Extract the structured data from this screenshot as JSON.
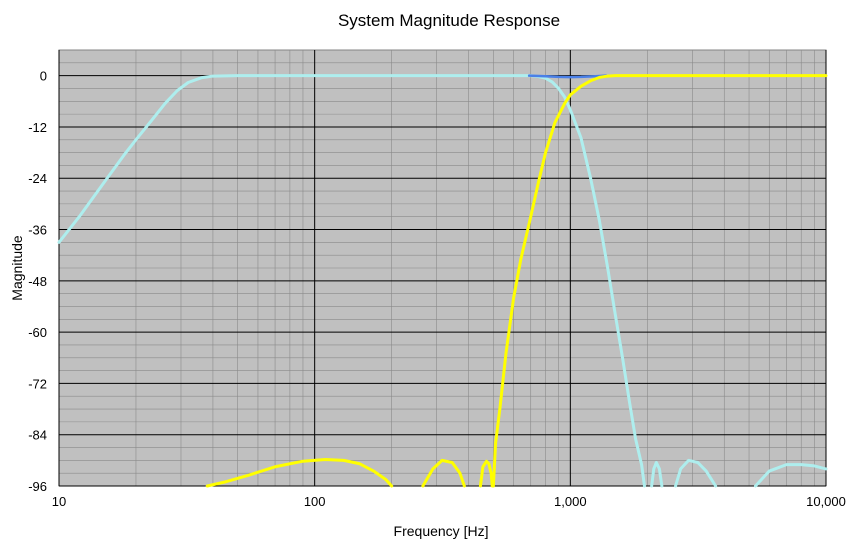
{
  "chart_data": {
    "type": "line",
    "title": "System Magnitude Response",
    "xlabel": "Frequency [Hz]",
    "ylabel": "Magnitude",
    "x_scale": "log",
    "xlim": [
      10,
      10000
    ],
    "ylim": [
      -96,
      6
    ],
    "x_ticks": [
      {
        "value": 10,
        "label": "10"
      },
      {
        "value": 100,
        "label": "100"
      },
      {
        "value": 1000,
        "label": "1,000"
      },
      {
        "value": 10000,
        "label": "10,000"
      }
    ],
    "y_ticks": [
      {
        "value": 0,
        "label": "0"
      },
      {
        "value": -12,
        "label": "-12"
      },
      {
        "value": -24,
        "label": "-24"
      },
      {
        "value": -36,
        "label": "-36"
      },
      {
        "value": -48,
        "label": "-48"
      },
      {
        "value": -60,
        "label": "-60"
      },
      {
        "value": -72,
        "label": "-72"
      },
      {
        "value": -84,
        "label": "-84"
      },
      {
        "value": -96,
        "label": "-96"
      }
    ],
    "grid": true,
    "plot_background": "#c0c0c0",
    "series": [
      {
        "color": "#aeeeee",
        "segments": [
          [
            [
              10,
              -39
            ],
            [
              12,
              -33
            ],
            [
              15,
              -25
            ],
            [
              18,
              -18.5
            ],
            [
              20,
              -15
            ],
            [
              23,
              -10.5
            ],
            [
              26,
              -6.5
            ],
            [
              29,
              -3.5
            ],
            [
              32,
              -1.6
            ],
            [
              36,
              -0.5
            ],
            [
              40,
              -0.1
            ],
            [
              50,
              0
            ],
            [
              100,
              0
            ],
            [
              200,
              0
            ],
            [
              400,
              0
            ],
            [
              600,
              0
            ],
            [
              700,
              0
            ],
            [
              750,
              -0.2
            ],
            [
              800,
              -0.6
            ],
            [
              850,
              -1.5
            ],
            [
              900,
              -3
            ],
            [
              950,
              -5
            ],
            [
              1000,
              -8
            ],
            [
              1100,
              -14.5
            ],
            [
              1200,
              -24
            ],
            [
              1300,
              -34
            ],
            [
              1400,
              -45
            ],
            [
              1500,
              -56
            ],
            [
              1600,
              -66
            ],
            [
              1700,
              -76
            ],
            [
              1800,
              -85
            ],
            [
              1900,
              -91
            ],
            [
              1950,
              -96
            ]
          ],
          [
            [
              2080,
              -96
            ],
            [
              2120,
              -92
            ],
            [
              2170,
              -90.5
            ],
            [
              2230,
              -92
            ],
            [
              2280,
              -96
            ]
          ],
          [
            [
              2580,
              -96
            ],
            [
              2700,
              -92
            ],
            [
              2900,
              -90
            ],
            [
              3150,
              -90.5
            ],
            [
              3400,
              -92.5
            ],
            [
              3700,
              -96
            ]
          ],
          [
            [
              5300,
              -96
            ],
            [
              6000,
              -92.5
            ],
            [
              7000,
              -91
            ],
            [
              8000,
              -91
            ],
            [
              9000,
              -91.3
            ],
            [
              10000,
              -92
            ]
          ]
        ]
      },
      {
        "color": "#4a80e8",
        "segments": [
          [
            [
              690,
              0
            ],
            [
              800,
              -0.15
            ],
            [
              900,
              -0.3
            ],
            [
              1000,
              -0.35
            ],
            [
              1100,
              -0.3
            ],
            [
              1250,
              -0.15
            ],
            [
              1380,
              0
            ]
          ]
        ]
      },
      {
        "color": "#ffff00",
        "segments": [
          [
            [
              38,
              -96
            ],
            [
              45,
              -95
            ],
            [
              55,
              -93.5
            ],
            [
              70,
              -91.5
            ],
            [
              90,
              -90.2
            ],
            [
              110,
              -89.8
            ],
            [
              130,
              -90
            ],
            [
              150,
              -90.8
            ],
            [
              170,
              -92.5
            ],
            [
              190,
              -94.5
            ],
            [
              200,
              -96
            ]
          ],
          [
            [
              265,
              -96
            ],
            [
              290,
              -92
            ],
            [
              315,
              -90
            ],
            [
              345,
              -90.5
            ],
            [
              370,
              -93
            ],
            [
              385,
              -96
            ]
          ],
          [
            [
              445,
              -96
            ],
            [
              455,
              -91.5
            ],
            [
              470,
              -90.2
            ],
            [
              480,
              -90.8
            ],
            [
              490,
              -93
            ],
            [
              495,
              -96
            ]
          ],
          [
            [
              500,
              -96
            ],
            [
              510,
              -86
            ],
            [
              530,
              -78
            ],
            [
              560,
              -65
            ],
            [
              600,
              -52
            ],
            [
              640,
              -43
            ],
            [
              700,
              -33
            ],
            [
              750,
              -25
            ],
            [
              800,
              -18
            ],
            [
              870,
              -11
            ],
            [
              950,
              -6.5
            ],
            [
              1000,
              -4.5
            ],
            [
              1100,
              -2.5
            ],
            [
              1200,
              -1.2
            ],
            [
              1300,
              -0.4
            ],
            [
              1400,
              -0.1
            ],
            [
              1500,
              0
            ],
            [
              2000,
              0
            ],
            [
              5000,
              0
            ],
            [
              10000,
              0
            ]
          ]
        ]
      }
    ]
  }
}
